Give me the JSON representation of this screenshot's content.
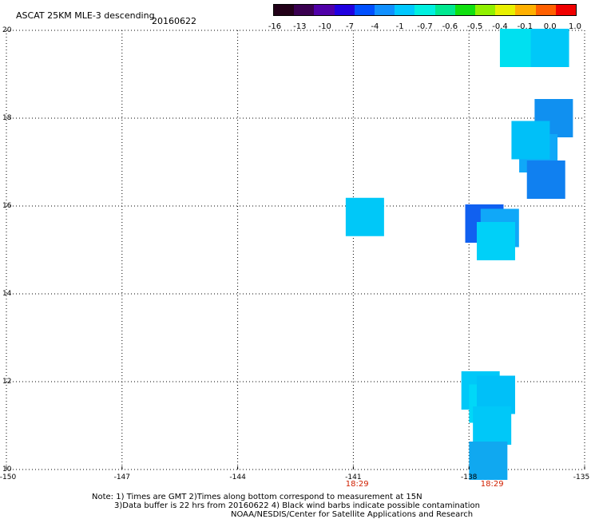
{
  "header": {
    "title": "ASCAT 25KM MLE-3 descending",
    "date": "20160622"
  },
  "colorbar": {
    "colors": [
      "#220018",
      "#3a0050",
      "#5000a8",
      "#2000e0",
      "#0050ff",
      "#1090ff",
      "#00c8ff",
      "#00f0e0",
      "#00e890",
      "#10e010",
      "#90f000",
      "#e8f000",
      "#ffb000",
      "#ff6000",
      "#f00000"
    ],
    "labels": [
      "-16",
      "-13",
      "-10",
      "-7",
      "-4",
      "-1",
      "-0.7",
      "-0.6",
      "-0.5",
      "-0.4",
      "-0.1",
      "0.0",
      "1.0"
    ]
  },
  "map": {
    "lon_range": [
      -150,
      -135
    ],
    "lat_range": [
      10,
      20
    ],
    "lon_ticks": [
      "-150",
      "-147",
      "-144",
      "-141",
      "-138",
      "-135"
    ],
    "lat_ticks": [
      "10",
      "12",
      "14",
      "16",
      "18",
      "20"
    ],
    "pass_times": [
      {
        "text": "18:29",
        "lon": -140.9
      },
      {
        "text": "18:29",
        "lon": -137.4
      }
    ],
    "cells": [
      {
        "lon": -136.7,
        "lat": 19.6,
        "color": "#00e0f0"
      },
      {
        "lon": -135.9,
        "lat": 19.6,
        "color": "#00c8f8"
      },
      {
        "lon": -135.8,
        "lat": 18.0,
        "color": "#1090f0"
      },
      {
        "lon": -136.2,
        "lat": 17.2,
        "color": "#10a8f8"
      },
      {
        "lon": -136.4,
        "lat": 17.5,
        "color": "#00c0f8"
      },
      {
        "lon": -136.0,
        "lat": 16.6,
        "color": "#1080f0"
      },
      {
        "lon": -140.7,
        "lat": 15.75,
        "color": "#00c8f8"
      },
      {
        "lon": -137.6,
        "lat": 15.6,
        "color": "#1060f0"
      },
      {
        "lon": -137.2,
        "lat": 15.5,
        "color": "#10a8f8"
      },
      {
        "lon": -137.3,
        "lat": 15.2,
        "color": "#00d0f8"
      },
      {
        "lon": -137.7,
        "lat": 11.8,
        "color": "#00c8f8"
      },
      {
        "lon": -137.5,
        "lat": 11.5,
        "color": "#00d8f8"
      },
      {
        "lon": -137.3,
        "lat": 11.7,
        "color": "#00c0f8"
      },
      {
        "lon": -137.4,
        "lat": 11.0,
        "color": "#00c8f8"
      },
      {
        "lon": -137.5,
        "lat": 10.2,
        "color": "#10a8f0"
      }
    ]
  },
  "notes": {
    "line1": "Note: 1) Times are GMT 2)Times along bottom correspond to measurement at 15N",
    "line2": "3)Data buffer is 22 hrs from 20160622 4) Black wind barbs indicate possible contamination",
    "line3": "NOAA/NESDIS/Center for Satellite Applications and Research"
  }
}
